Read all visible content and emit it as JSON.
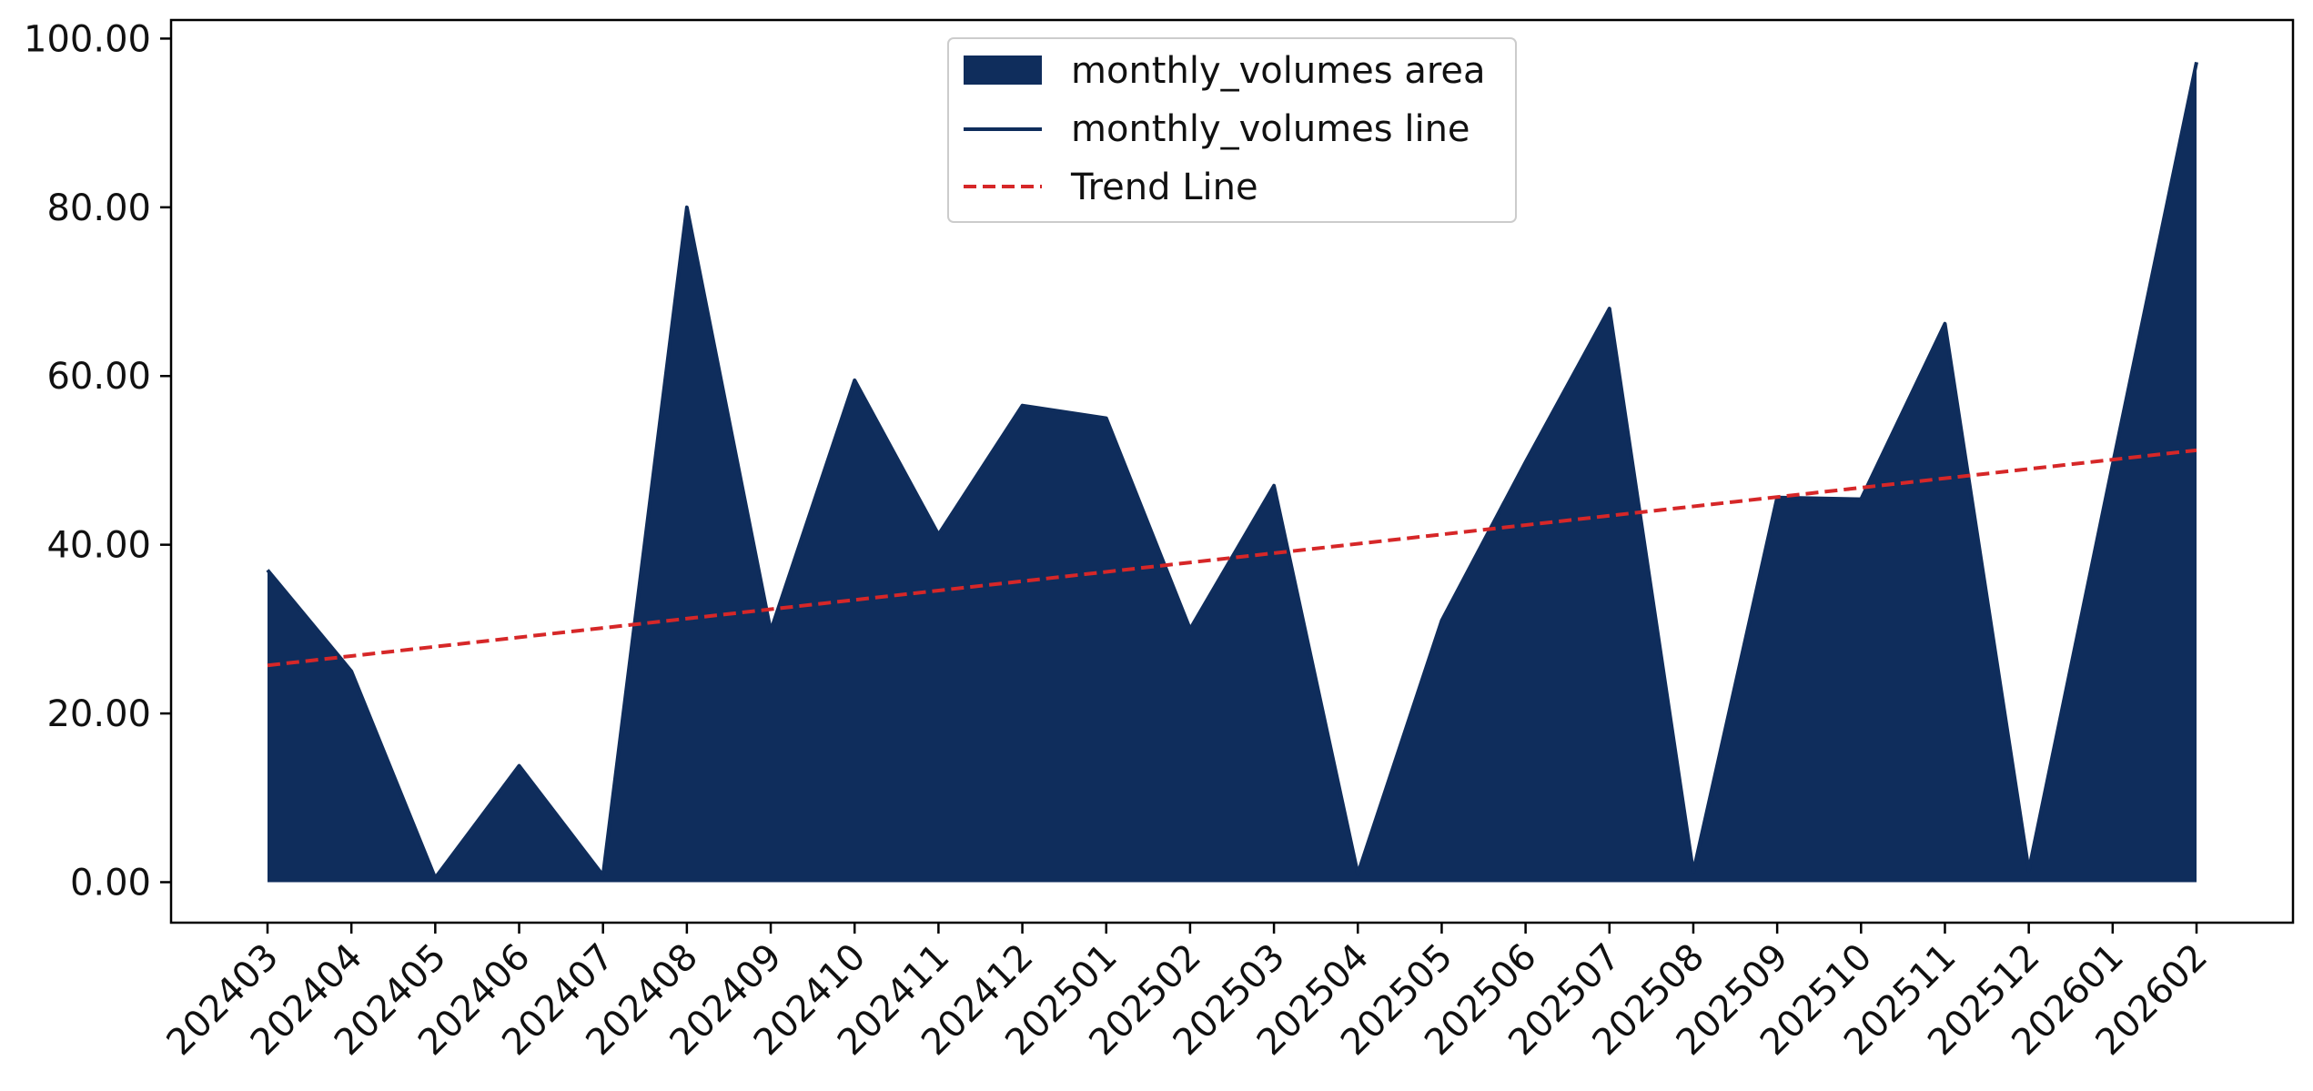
{
  "chart_data": {
    "type": "area",
    "x": [
      "202403",
      "202404",
      "202405",
      "202406",
      "202407",
      "202408",
      "202409",
      "202410",
      "202411",
      "202412",
      "202501",
      "202502",
      "202503",
      "202504",
      "202505",
      "202506",
      "202507",
      "202508",
      "202509",
      "202510",
      "202511",
      "202512",
      "202601",
      "202602"
    ],
    "series": [
      {
        "name": "monthly_volumes area",
        "kind": "area",
        "color": "#0f2d5c",
        "values": [
          37.0,
          25.0,
          0.5,
          13.8,
          0.8,
          80.0,
          29.8,
          59.5,
          41.2,
          56.5,
          55.0,
          30.0,
          47.0,
          1.0,
          31.0,
          49.8,
          68.0,
          1.2,
          45.6,
          45.4,
          66.2,
          1.4,
          49.5,
          97.2
        ]
      },
      {
        "name": "monthly_volumes line",
        "kind": "line",
        "color": "#0f2d5c",
        "values": [
          37.0,
          25.0,
          0.5,
          13.8,
          0.8,
          80.0,
          29.8,
          59.5,
          41.2,
          56.5,
          55.0,
          30.0,
          47.0,
          1.0,
          31.0,
          49.8,
          68.0,
          1.2,
          45.6,
          45.4,
          66.2,
          1.4,
          49.5,
          97.2
        ]
      },
      {
        "name": "Trend Line",
        "kind": "trend",
        "color": "#d62728",
        "start": 25.7,
        "end": 51.2
      }
    ],
    "yticks": [
      "0.00",
      "20.00",
      "40.00",
      "60.00",
      "80.00",
      "100.00"
    ],
    "ylim": [
      -4.8,
      102.2
    ],
    "grid": false,
    "legend_position": "top-center",
    "title": "",
    "xlabel": "",
    "ylabel": ""
  }
}
